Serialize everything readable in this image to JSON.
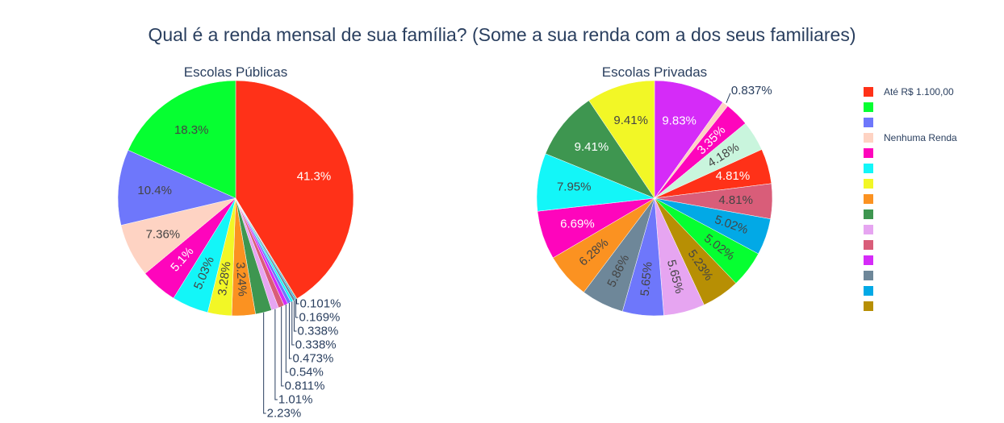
{
  "chart_data": {
    "type": "pie",
    "title": "Qual é a renda mensal de sua família? (Some a sua renda com a dos seus familiares)",
    "legend": {
      "position": "right",
      "entries": [
        {
          "label": "Até R$ 1.100,00",
          "color": "#FF3118"
        },
        {
          "label": "",
          "color": "#06FF31"
        },
        {
          "label": "",
          "color": "#6E77FB"
        },
        {
          "label": "Nenhuma Renda",
          "color": "#FED3C3"
        },
        {
          "label": "",
          "color": "#FE05BC"
        },
        {
          "label": "",
          "color": "#13F6F8"
        },
        {
          "label": "",
          "color": "#F2F726"
        },
        {
          "label": "",
          "color": "#FB9221"
        },
        {
          "label": "",
          "color": "#3E9650"
        },
        {
          "label": "",
          "color": "#E6A5F1"
        },
        {
          "label": "",
          "color": "#D95D79"
        },
        {
          "label": "",
          "color": "#D52BF8"
        },
        {
          "label": "",
          "color": "#6E8799"
        },
        {
          "label": "",
          "color": "#02A9E6"
        },
        {
          "label": "",
          "color": "#B78F04"
        }
      ]
    },
    "pies": [
      {
        "title": "Escolas Públicas",
        "slices": [
          {
            "value": 41.3,
            "label": "41.3%",
            "color": "#FF3118",
            "inside": true,
            "text_color": "#ffffff"
          },
          {
            "value": 0.101,
            "label": "0.101%",
            "color": "#B78F04",
            "inside": false
          },
          {
            "value": 0.169,
            "label": "0.169%",
            "color": "#02A9E6",
            "inside": false
          },
          {
            "value": 0.338,
            "label": "0.338%",
            "color": "#6E8799",
            "inside": false
          },
          {
            "value": 0.338,
            "label": "0.338%",
            "color": "#13F6F8",
            "inside": false
          },
          {
            "value": 0.473,
            "label": "0.473%",
            "color": "#6E77FB",
            "inside": false
          },
          {
            "value": 0.54,
            "label": "0.54%",
            "color": "#D52BF8",
            "inside": false
          },
          {
            "value": 0.811,
            "label": "0.811%",
            "color": "#D95D79",
            "inside": false
          },
          {
            "value": 1.01,
            "label": "1.01%",
            "color": "#E6A5F1",
            "inside": false
          },
          {
            "value": 2.23,
            "label": "2.23%",
            "color": "#3E9650",
            "inside": false
          },
          {
            "value": 3.24,
            "label": "3.24%",
            "color": "#FB9221",
            "inside": true,
            "text_color": "#444444",
            "rotated": true
          },
          {
            "value": 3.28,
            "label": "3.28%",
            "color": "#F2F726",
            "inside": true,
            "text_color": "#444444",
            "rotated": true
          },
          {
            "value": 5.03,
            "label": "5.03%",
            "color": "#13F6F8",
            "inside": true,
            "text_color": "#444444",
            "rotated": true
          },
          {
            "value": 5.1,
            "label": "5.1%",
            "color": "#FE05BC",
            "inside": true,
            "text_color": "#ffffff",
            "rotated": true
          },
          {
            "value": 7.36,
            "label": "7.36%",
            "color": "#FED3C3",
            "inside": true,
            "text_color": "#444444"
          },
          {
            "value": 10.4,
            "label": "10.4%",
            "color": "#6E77FB",
            "inside": true,
            "text_color": "#444444"
          },
          {
            "value": 18.3,
            "label": "18.3%",
            "color": "#06FF31",
            "inside": true,
            "text_color": "#444444"
          }
        ]
      },
      {
        "title": "Escolas Privadas",
        "slices": [
          {
            "value": 9.83,
            "label": "9.83%",
            "color": "#D52BF8",
            "inside": true,
            "text_color": "#ffffff"
          },
          {
            "value": 0.837,
            "label": "0.837%",
            "color": "#FED3C3",
            "inside": false
          },
          {
            "value": 3.35,
            "label": "3.35%",
            "color": "#FE05BC",
            "inside": true,
            "text_color": "#ffffff",
            "rotated": true
          },
          {
            "value": 4.18,
            "label": "4.18%",
            "color": "#C9F5DD",
            "inside": true,
            "text_color": "#444444",
            "rotated": true
          },
          {
            "value": 4.81,
            "label": "4.81%",
            "color": "#FF3118",
            "inside": true,
            "text_color": "#ffffff"
          },
          {
            "value": 4.81,
            "label": "4.81%",
            "color": "#D95D79",
            "inside": true,
            "text_color": "#444444"
          },
          {
            "value": 5.02,
            "label": "5.02%",
            "color": "#02A9E6",
            "inside": true,
            "text_color": "#444444",
            "rotated": true
          },
          {
            "value": 5.02,
            "label": "5.02%",
            "color": "#06FF31",
            "inside": true,
            "text_color": "#444444",
            "rotated": true
          },
          {
            "value": 5.23,
            "label": "5.23%",
            "color": "#B78F04",
            "inside": true,
            "text_color": "#444444",
            "rotated": true
          },
          {
            "value": 5.65,
            "label": "5.65%",
            "color": "#E6A5F1",
            "inside": true,
            "text_color": "#444444",
            "rotated": true
          },
          {
            "value": 5.65,
            "label": "5.65%",
            "color": "#6E77FB",
            "inside": true,
            "text_color": "#444444",
            "rotated": true
          },
          {
            "value": 5.86,
            "label": "5.86%",
            "color": "#6E8799",
            "inside": true,
            "text_color": "#444444",
            "rotated": true
          },
          {
            "value": 6.28,
            "label": "6.28%",
            "color": "#FB9221",
            "inside": true,
            "text_color": "#444444",
            "rotated": true
          },
          {
            "value": 6.69,
            "label": "6.69%",
            "color": "#FE05BC",
            "inside": true,
            "text_color": "#ffffff"
          },
          {
            "value": 7.95,
            "label": "7.95%",
            "color": "#13F6F8",
            "inside": true,
            "text_color": "#444444"
          },
          {
            "value": 9.41,
            "label": "9.41%",
            "color": "#3E9650",
            "inside": true,
            "text_color": "#ffffff"
          },
          {
            "value": 9.41,
            "label": "9.41%",
            "color": "#F2F726",
            "inside": true,
            "text_color": "#444444"
          }
        ]
      }
    ]
  }
}
